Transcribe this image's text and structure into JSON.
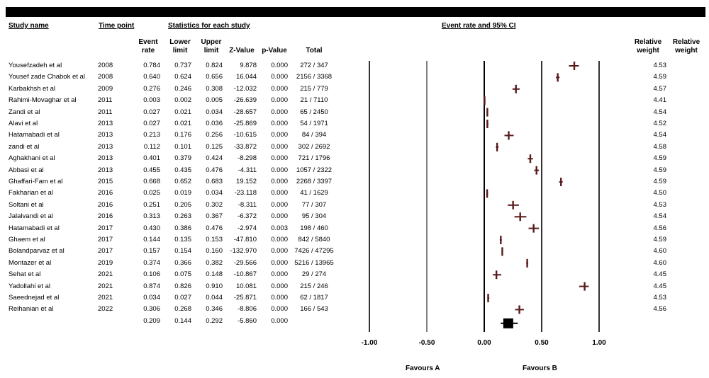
{
  "headers": {
    "study_name": "Study name",
    "time_point": "Time point",
    "statistics": "Statistics for each study",
    "event_rate_ci": "Event rate and 95% CI",
    "col_event_rate_1": "Event",
    "col_event_rate_2": "rate",
    "col_lower_1": "Lower",
    "col_lower_2": "limit",
    "col_upper_1": "Upper",
    "col_upper_2": "limit",
    "col_z": "Z-Value",
    "col_p": "p-Value",
    "col_total": "Total",
    "col_relw_1": "Relative",
    "col_relw_2": "weight",
    "col_relw2_1": "Relative",
    "col_relw2_2": "weight"
  },
  "favours": {
    "left": "Favours A",
    "right": "Favours B"
  },
  "chart_data": {
    "type": "forest",
    "xlim": [
      -1.0,
      1.0
    ],
    "x_ticks": [
      "-1.00",
      "-0.50",
      "0.00",
      "0.50",
      "1.00"
    ],
    "x_tick_values": [
      -1.0,
      -0.5,
      0.0,
      0.5,
      1.0
    ],
    "studies": [
      {
        "name": "Yousefzadeh et al",
        "year": "2008",
        "rate": "0.784",
        "lower": "0.737",
        "upper": "0.824",
        "z": "9.878",
        "p": "0.000",
        "total": "272 / 347",
        "weight": "4.53"
      },
      {
        "name": "Yousef zade Chabok et al",
        "year": "2008",
        "rate": "0.640",
        "lower": "0.624",
        "upper": "0.656",
        "z": "16.044",
        "p": "0.000",
        "total": "2156 / 3368",
        "weight": "4.59"
      },
      {
        "name": "Karbakhsh et al",
        "year": "2009",
        "rate": "0.276",
        "lower": "0.246",
        "upper": "0.308",
        "z": "-12.032",
        "p": "0.000",
        "total": "215 / 779",
        "weight": "4.57"
      },
      {
        "name": "Rahimi-Movaghar et al",
        "year": "2011",
        "rate": "0.003",
        "lower": "0.002",
        "upper": "0.005",
        "z": "-26.639",
        "p": "0.000",
        "total": "21 / 7110",
        "weight": "4.41"
      },
      {
        "name": "Zandi et al",
        "year": "2011",
        "rate": "0.027",
        "lower": "0.021",
        "upper": "0.034",
        "z": "-28.657",
        "p": "0.000",
        "total": "65 / 2450",
        "weight": "4.54"
      },
      {
        "name": "Alavi et al",
        "year": "2013",
        "rate": "0.027",
        "lower": "0.021",
        "upper": "0.036",
        "z": "-25.869",
        "p": "0.000",
        "total": "54 / 1971",
        "weight": "4.52"
      },
      {
        "name": "Hatamabadi et al",
        "year": "2013",
        "rate": "0.213",
        "lower": "0.176",
        "upper": "0.256",
        "z": "-10.615",
        "p": "0.000",
        "total": "84 / 394",
        "weight": "4.54"
      },
      {
        "name": "zandi et al",
        "year": "2013",
        "rate": "0.112",
        "lower": "0.101",
        "upper": "0.125",
        "z": "-33.872",
        "p": "0.000",
        "total": "302 / 2692",
        "weight": "4.58"
      },
      {
        "name": "Aghakhani et al",
        "year": "2013",
        "rate": "0.401",
        "lower": "0.379",
        "upper": "0.424",
        "z": "-8.298",
        "p": "0.000",
        "total": "721 / 1796",
        "weight": "4.59"
      },
      {
        "name": "Abbasi et al",
        "year": "2013",
        "rate": "0.455",
        "lower": "0.435",
        "upper": "0.476",
        "z": "-4.311",
        "p": "0.000",
        "total": "1057 / 2322",
        "weight": "4.59"
      },
      {
        "name": "Ghaffari-Fam et al",
        "year": "2015",
        "rate": "0.668",
        "lower": "0.652",
        "upper": "0.683",
        "z": "19.152",
        "p": "0.000",
        "total": "2268 / 3397",
        "weight": "4.59"
      },
      {
        "name": "Fakharian et al",
        "year": "2016",
        "rate": "0.025",
        "lower": "0.019",
        "upper": "0.034",
        "z": "-23.118",
        "p": "0.000",
        "total": "41 / 1629",
        "weight": "4.50"
      },
      {
        "name": "Soltani et al",
        "year": "2016",
        "rate": "0.251",
        "lower": "0.205",
        "upper": "0.302",
        "z": "-8.311",
        "p": "0.000",
        "total": "77 / 307",
        "weight": "4.53"
      },
      {
        "name": "Jalalvandi et al",
        "year": "2016",
        "rate": "0.313",
        "lower": "0.263",
        "upper": "0.367",
        "z": "-6.372",
        "p": "0.000",
        "total": "95 / 304",
        "weight": "4.54"
      },
      {
        "name": "Hatamabadi et al",
        "year": "2017",
        "rate": "0.430",
        "lower": "0.386",
        "upper": "0.476",
        "z": "-2.974",
        "p": "0.003",
        "total": "198 / 460",
        "weight": "4.56"
      },
      {
        "name": "Ghaem et al",
        "year": "2017",
        "rate": "0.144",
        "lower": "0.135",
        "upper": "0.153",
        "z": "-47.810",
        "p": "0.000",
        "total": "842 / 5840",
        "weight": "4.59"
      },
      {
        "name": "Bolandparvaz et al",
        "year": "2017",
        "rate": "0.157",
        "lower": "0.154",
        "upper": "0.160",
        "z": "-132.970",
        "p": "0.000",
        "total": "7426 / 47295",
        "weight": "4.60"
      },
      {
        "name": "Montazer et al",
        "year": "2019",
        "rate": "0.374",
        "lower": "0.366",
        "upper": "0.382",
        "z": "-29.566",
        "p": "0.000",
        "total": "5216 / 13965",
        "weight": "4.60"
      },
      {
        "name": "Sehat et al",
        "year": "2021",
        "rate": "0.106",
        "lower": "0.075",
        "upper": "0.148",
        "z": "-10.867",
        "p": "0.000",
        "total": "29 / 274",
        "weight": "4.45"
      },
      {
        "name": "Yadollahi et al",
        "year": "2021",
        "rate": "0.874",
        "lower": "0.826",
        "upper": "0.910",
        "z": "10.081",
        "p": "0.000",
        "total": "215 / 246",
        "weight": "4.45"
      },
      {
        "name": "Saeednejad et al",
        "year": "2021",
        "rate": "0.034",
        "lower": "0.027",
        "upper": "0.044",
        "z": "-25.871",
        "p": "0.000",
        "total": "62 / 1817",
        "weight": "4.53"
      },
      {
        "name": "Reihanian et al",
        "year": "2022",
        "rate": "0.306",
        "lower": "0.268",
        "upper": "0.346",
        "z": "-8.806",
        "p": "0.000",
        "total": "166 / 543",
        "weight": "4.56"
      }
    ],
    "summary": {
      "rate": "0.209",
      "lower": "0.144",
      "upper": "0.292",
      "z": "-5.860",
      "p": "0.000"
    },
    "colors": {
      "marker": "#5a1a1a",
      "summary": "#000000",
      "axis": "#000000"
    }
  }
}
